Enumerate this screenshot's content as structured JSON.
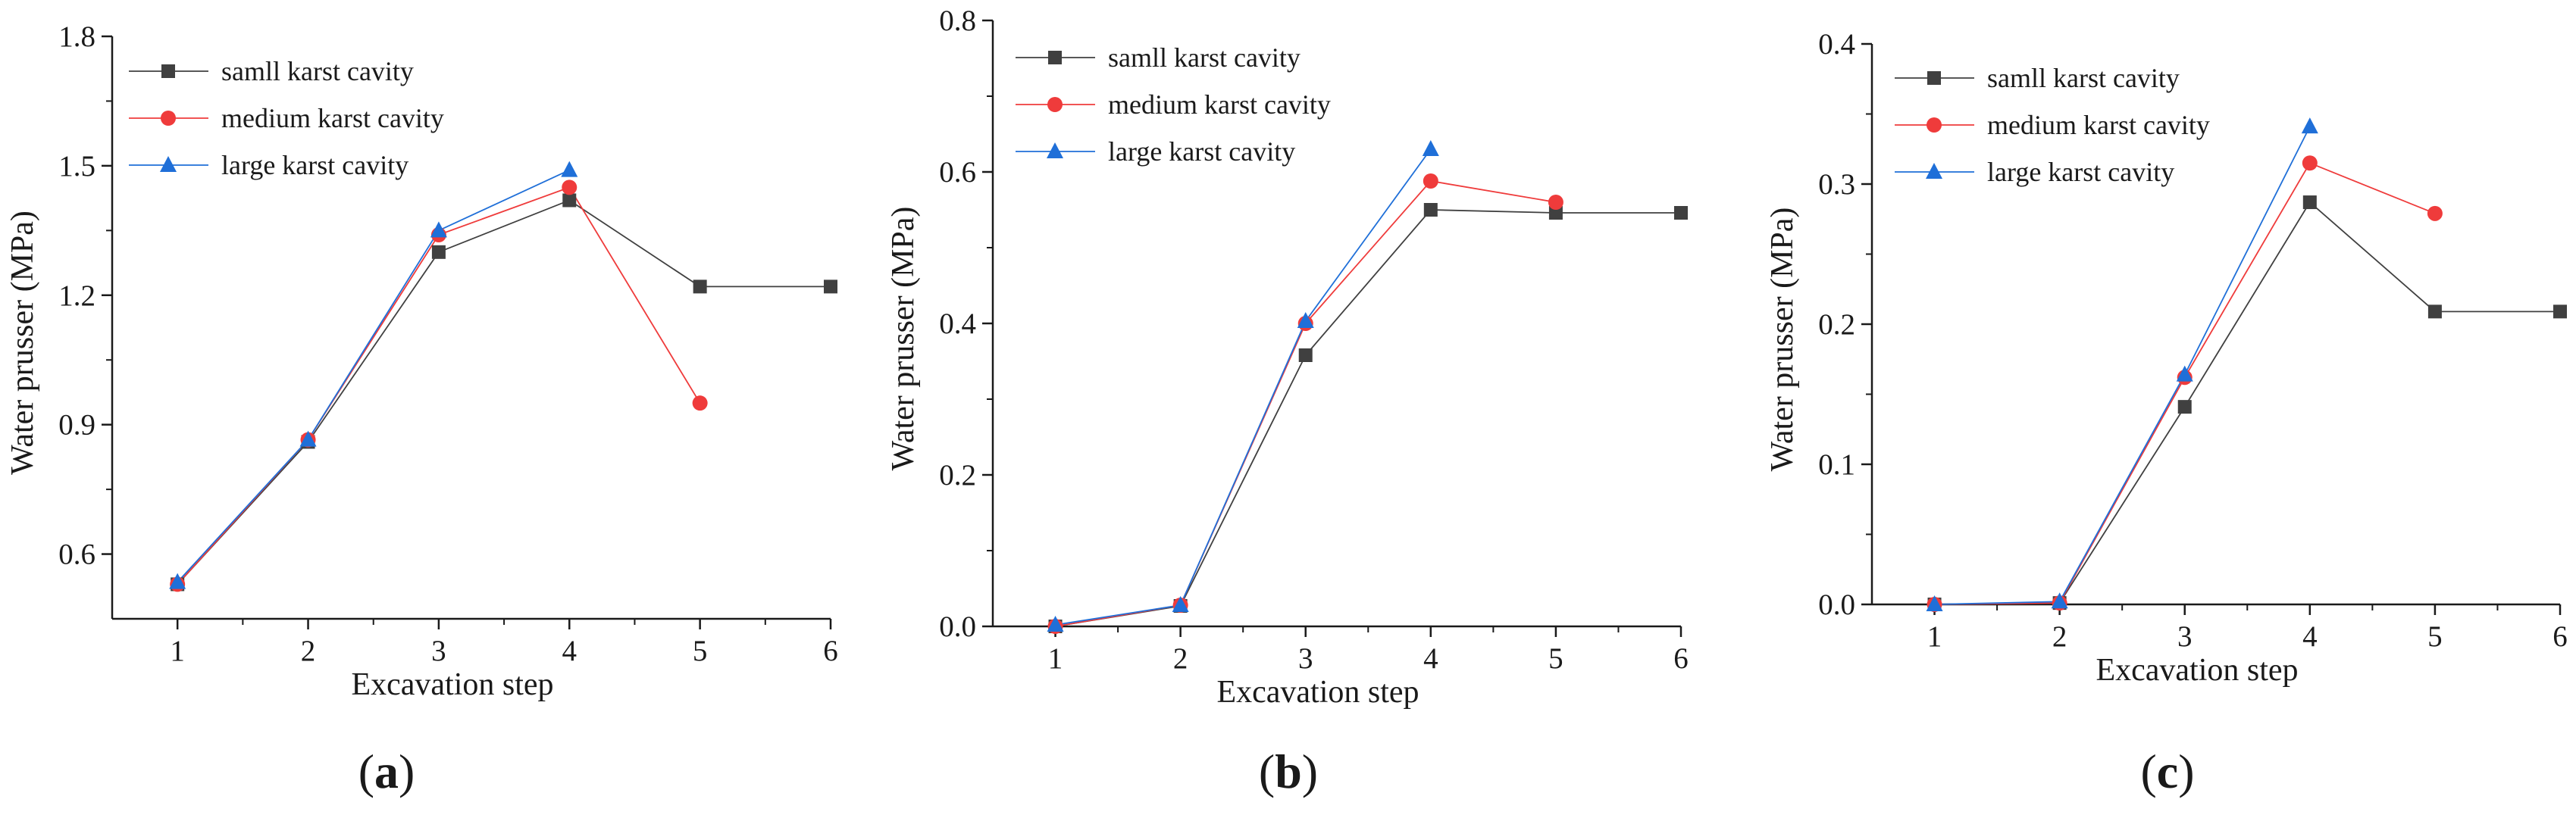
{
  "chart_data": [
    {
      "type": "line",
      "panel_label": {
        "open": "(",
        "letter": "a",
        "close": ")"
      },
      "xlabel": "Excavation step",
      "ylabel": "Water prusser (MPa)",
      "xlim": [
        0.5,
        6
      ],
      "ylim": [
        0.45,
        1.8
      ],
      "xticks": [
        "1",
        "2",
        "3",
        "4",
        "5",
        "6"
      ],
      "yticks": [
        "0.6",
        "0.9",
        "1.2",
        "1.5",
        "1.8"
      ],
      "legend_position": "top-left",
      "series": [
        {
          "name": "samll karst cavity",
          "color": "#404040",
          "marker": "square",
          "x": [
            1,
            2,
            3,
            4,
            5,
            6
          ],
          "values": [
            0.53,
            0.86,
            1.3,
            1.42,
            1.22,
            1.22
          ]
        },
        {
          "name": "medium karst cavity",
          "color": "#ef3b3b",
          "marker": "circle",
          "x": [
            1,
            2,
            3,
            4,
            5
          ],
          "values": [
            0.53,
            0.865,
            1.34,
            1.45,
            0.95
          ]
        },
        {
          "name": "large karst cavity",
          "color": "#1f6fd8",
          "marker": "triangle",
          "x": [
            1,
            2,
            3,
            4
          ],
          "values": [
            0.535,
            0.865,
            1.35,
            1.49
          ]
        }
      ]
    },
    {
      "type": "line",
      "panel_label": {
        "open": "(",
        "letter": "b",
        "close": ")"
      },
      "xlabel": "Excavation step",
      "ylabel": "Water prusser (MPa)",
      "xlim": [
        0.5,
        6
      ],
      "ylim": [
        0,
        0.8
      ],
      "xticks": [
        "1",
        "2",
        "3",
        "4",
        "5",
        "6"
      ],
      "yticks": [
        "0.0",
        "0.2",
        "0.4",
        "0.6",
        "0.8"
      ],
      "legend_position": "top-left",
      "series": [
        {
          "name": "samll karst cavity",
          "color": "#404040",
          "marker": "square",
          "x": [
            1,
            2,
            3,
            4,
            5,
            6
          ],
          "values": [
            0.0,
            0.027,
            0.358,
            0.55,
            0.546,
            0.546
          ]
        },
        {
          "name": "medium karst cavity",
          "color": "#ef3b3b",
          "marker": "circle",
          "x": [
            1,
            2,
            3,
            4,
            5
          ],
          "values": [
            0.0,
            0.028,
            0.4,
            0.588,
            0.56
          ]
        },
        {
          "name": "large karst cavity",
          "color": "#1f6fd8",
          "marker": "triangle",
          "x": [
            1,
            2,
            3,
            4
          ],
          "values": [
            0.002,
            0.028,
            0.403,
            0.63
          ]
        }
      ]
    },
    {
      "type": "line",
      "panel_label": {
        "open": "(",
        "letter": "c",
        "close": ")"
      },
      "xlabel": "Excavation step",
      "ylabel": "Water prusser (MPa)",
      "xlim": [
        0.5,
        6
      ],
      "ylim": [
        0,
        0.4
      ],
      "xticks": [
        "1",
        "2",
        "3",
        "4",
        "5",
        "6"
      ],
      "yticks": [
        "0.0",
        "0.1",
        "0.2",
        "0.3",
        "0.4"
      ],
      "legend_position": "top-left",
      "series": [
        {
          "name": "samll karst cavity",
          "color": "#404040",
          "marker": "square",
          "x": [
            1,
            2,
            3,
            4,
            5,
            6
          ],
          "values": [
            0.0,
            0.001,
            0.141,
            0.287,
            0.209,
            0.209
          ]
        },
        {
          "name": "medium karst cavity",
          "color": "#ef3b3b",
          "marker": "circle",
          "x": [
            1,
            2,
            3,
            4,
            5
          ],
          "values": [
            0.0,
            0.001,
            0.162,
            0.315,
            0.279
          ]
        },
        {
          "name": "large karst cavity",
          "color": "#1f6fd8",
          "marker": "triangle",
          "x": [
            1,
            2,
            3,
            4
          ],
          "values": [
            0.0,
            0.002,
            0.164,
            0.341
          ]
        }
      ]
    }
  ]
}
